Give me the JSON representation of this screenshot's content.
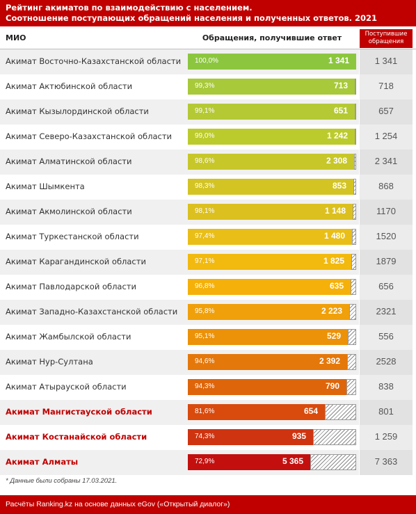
{
  "title": {
    "line1": "Рейтинг акиматов по взаимодействию с населением.",
    "line2": "Соотношение поступающих обращений населения и полученных ответов. 2021"
  },
  "headers": {
    "mio": "МИО",
    "answered": "Обращения, получившие ответ",
    "received": "Поступившие обращения"
  },
  "footnote": "* Данные были собраны 17.03.2021.",
  "footer": "Расчёты Ranking.kz на основе данных eGov («Открытый диалог»)",
  "chart_data": {
    "type": "bar",
    "categories": [
      "Акимат Восточно-Казахстанской области",
      "Акимат Актюбинской области",
      "Акимат Кызылординской области",
      "Акимат Северо-Казахстанской области",
      "Акимат Алматинской области",
      "Акимат Шымкента",
      "Акимат Акмолинской области",
      "Акимат Туркестанской области",
      "Акимат Карагандинской области",
      "Акимат Павлодарской области",
      "Акимат Западно-Казахстанской области",
      "Акимат Жамбылской области",
      "Акимат Нур-Султана",
      "Акимат Атырауской области",
      "Акимат Мангистауской области",
      "Акимат Костанайской области",
      "Акимат Алматы"
    ],
    "series": [
      {
        "name": "Обращения, получившие ответ",
        "values": [
          1341,
          713,
          651,
          1242,
          2308,
          853,
          1148,
          1480,
          1825,
          635,
          2223,
          529,
          2392,
          790,
          654,
          935,
          5365
        ],
        "labels": [
          "1 341",
          "713",
          "651",
          "1 242",
          "2 308",
          "853",
          "1 148",
          "1 480",
          "1 825",
          "635",
          "2 223",
          "529",
          "2 392",
          "790",
          "654",
          "935",
          "5 365"
        ]
      },
      {
        "name": "Поступившие обращения",
        "values": [
          1341,
          718,
          657,
          1254,
          2341,
          868,
          1170,
          1520,
          1879,
          656,
          2321,
          556,
          2528,
          838,
          801,
          1259,
          7363
        ],
        "labels": [
          "1 341",
          "718",
          "657",
          "1 254",
          "2 341",
          "868",
          "1170",
          "1520",
          "1879",
          "656",
          "2321",
          "556",
          "2528",
          "838",
          "801",
          "1 259",
          "7 363"
        ]
      }
    ],
    "percent": [
      100.0,
      99.3,
      99.1,
      99.0,
      98.6,
      98.3,
      98.1,
      97.4,
      97.1,
      96.8,
      95.8,
      95.1,
      94.6,
      94.3,
      81.6,
      74.3,
      72.9
    ],
    "percent_labels": [
      "100,0%",
      "99,3%",
      "99,1%",
      "99,0%",
      "98,6%",
      "98,3%",
      "98,1%",
      "97,4%",
      "97,1%",
      "96,8%",
      "95,8%",
      "95,1%",
      "94,6%",
      "94,3%",
      "81,6%",
      "74,3%",
      "72,9%"
    ],
    "highlighted": [
      false,
      false,
      false,
      false,
      false,
      false,
      false,
      false,
      false,
      false,
      false,
      false,
      false,
      false,
      true,
      true,
      true
    ],
    "colors": [
      "#8cc63f",
      "#a8c93a",
      "#b5c935",
      "#bccb2c",
      "#c7c72a",
      "#d3c424",
      "#dcc01f",
      "#e9be17",
      "#f2b90e",
      "#f5b10a",
      "#f0a00a",
      "#ec9208",
      "#e5780a",
      "#df650a",
      "#d94a0d",
      "#cf3410",
      "#c40f0f"
    ]
  }
}
